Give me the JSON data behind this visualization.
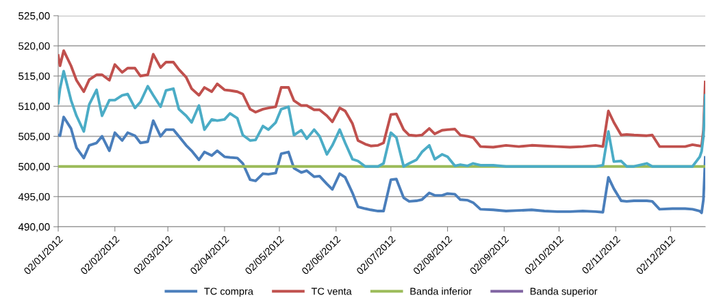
{
  "chart_data": {
    "type": "line",
    "x": [
      "2012-01-02",
      "2012-01-03",
      "2012-01-05",
      "2012-01-09",
      "2012-01-12",
      "2012-01-16",
      "2012-01-19",
      "2012-01-23",
      "2012-01-26",
      "2012-01-30",
      "2012-02-02",
      "2012-02-06",
      "2012-02-09",
      "2012-02-13",
      "2012-02-16",
      "2012-02-20",
      "2012-02-23",
      "2012-02-27",
      "2012-03-01",
      "2012-03-05",
      "2012-03-08",
      "2012-03-12",
      "2012-03-15",
      "2012-03-19",
      "2012-03-22",
      "2012-03-26",
      "2012-03-29",
      "2012-04-02",
      "2012-04-05",
      "2012-04-09",
      "2012-04-12",
      "2012-04-16",
      "2012-04-19",
      "2012-04-23",
      "2012-04-26",
      "2012-04-30",
      "2012-05-03",
      "2012-05-07",
      "2012-05-10",
      "2012-05-14",
      "2012-05-17",
      "2012-05-21",
      "2012-05-24",
      "2012-05-28",
      "2012-05-31",
      "2012-06-04",
      "2012-06-07",
      "2012-06-11",
      "2012-06-14",
      "2012-06-18",
      "2012-06-21",
      "2012-06-25",
      "2012-06-28",
      "2012-07-02",
      "2012-07-05",
      "2012-07-09",
      "2012-07-12",
      "2012-07-16",
      "2012-07-19",
      "2012-07-23",
      "2012-07-26",
      "2012-07-30",
      "2012-08-02",
      "2012-08-06",
      "2012-08-09",
      "2012-08-13",
      "2012-08-16",
      "2012-08-20",
      "2012-08-27",
      "2012-09-03",
      "2012-09-10",
      "2012-09-17",
      "2012-09-24",
      "2012-10-01",
      "2012-10-08",
      "2012-10-15",
      "2012-10-22",
      "2012-10-26",
      "2012-10-29",
      "2012-11-01",
      "2012-11-05",
      "2012-11-08",
      "2012-11-12",
      "2012-11-19",
      "2012-11-22",
      "2012-11-26",
      "2012-12-03",
      "2012-12-10",
      "2012-12-14",
      "2012-12-18",
      "2012-12-19",
      "2012-12-20",
      "2012-12-21"
    ],
    "series": [
      {
        "name": "TC compra",
        "color": "#4a7ebb",
        "values": [
          505.2,
          505.1,
          508.2,
          506.3,
          503.1,
          501.4,
          503.5,
          503.9,
          505.0,
          502.6,
          505.6,
          504.3,
          505.6,
          505.1,
          503.9,
          504.1,
          507.6,
          505.0,
          506.1,
          506.1,
          505.0,
          503.5,
          502.6,
          501.1,
          502.4,
          501.8,
          502.6,
          501.6,
          501.5,
          501.4,
          500.5,
          497.8,
          497.6,
          498.8,
          498.7,
          498.9,
          502.1,
          502.4,
          499.7,
          499.0,
          499.3,
          498.3,
          498.4,
          497.1,
          496.2,
          498.8,
          498.2,
          495.6,
          493.3,
          493.0,
          492.8,
          492.6,
          492.6,
          497.8,
          497.9,
          494.8,
          494.2,
          494.3,
          494.5,
          495.6,
          495.2,
          495.2,
          495.5,
          495.4,
          494.5,
          494.4,
          494.0,
          492.9,
          492.8,
          492.6,
          492.7,
          492.8,
          492.6,
          492.5,
          492.5,
          492.6,
          492.5,
          492.4,
          498.2,
          496.3,
          494.3,
          494.2,
          494.3,
          494.3,
          494.2,
          492.9,
          493.0,
          493.0,
          492.9,
          492.6,
          492.3,
          494.5,
          501.5
        ]
      },
      {
        "name": "TC venta",
        "color": "#c0504d",
        "values": [
          518.4,
          516.7,
          519.2,
          516.7,
          514.3,
          512.4,
          514.4,
          515.2,
          515.2,
          514.3,
          516.9,
          515.6,
          516.3,
          516.3,
          515.0,
          515.2,
          518.6,
          516.4,
          517.3,
          517.3,
          516.1,
          514.8,
          512.9,
          511.8,
          513.1,
          512.4,
          513.7,
          512.7,
          512.6,
          512.4,
          512.0,
          509.5,
          509.0,
          509.5,
          509.7,
          509.9,
          513.1,
          513.1,
          510.9,
          510.1,
          510.1,
          509.4,
          509.4,
          508.4,
          507.4,
          509.7,
          509.2,
          507.1,
          504.3,
          503.7,
          503.4,
          503.5,
          503.9,
          508.6,
          508.7,
          506.1,
          505.2,
          505.1,
          505.2,
          506.3,
          505.4,
          506.0,
          506.1,
          506.2,
          505.2,
          505.0,
          504.8,
          503.3,
          503.2,
          503.5,
          503.3,
          503.5,
          503.4,
          503.3,
          503.2,
          503.3,
          503.5,
          503.3,
          509.2,
          507.3,
          505.2,
          505.3,
          505.2,
          505.1,
          505.2,
          503.3,
          503.3,
          503.3,
          503.6,
          503.4,
          503.4,
          506.0,
          514.0
        ]
      },
      {
        "name": "Banda inferior",
        "color": "#9bbb59",
        "x": [
          "2012-01-02",
          "2012-12-21"
        ],
        "values": [
          500,
          500
        ]
      },
      {
        "name": "Banda superior",
        "color": "#8064a2",
        "values": [
          null,
          null,
          null,
          null,
          null,
          null,
          null,
          null,
          null,
          null,
          null,
          null,
          null,
          null,
          null,
          null,
          null,
          null,
          null,
          null,
          null,
          null,
          null,
          null,
          null,
          null,
          null,
          null,
          null,
          null,
          null,
          null,
          null,
          null,
          null,
          null,
          null,
          null,
          null,
          null,
          null,
          null,
          null,
          null,
          null,
          null,
          null,
          null,
          null,
          null,
          null,
          null,
          null,
          null,
          null,
          null,
          null,
          null,
          null,
          null,
          null,
          null,
          null,
          null,
          null,
          null,
          null,
          null,
          null,
          null,
          null,
          null,
          null,
          null,
          null,
          null,
          null,
          null,
          null,
          null,
          null,
          null,
          null,
          null,
          null,
          null,
          null,
          null,
          null,
          null,
          null,
          null,
          null
        ]
      },
      {
        "color": "#4bacc6",
        "values": [
          510.5,
          512.9,
          515.8,
          511.0,
          508.4,
          505.8,
          510.3,
          512.7,
          508.4,
          511.0,
          511.0,
          511.8,
          512.0,
          509.7,
          510.7,
          513.3,
          511.8,
          509.9,
          512.6,
          512.9,
          509.5,
          508.4,
          507.3,
          510.1,
          506.1,
          507.8,
          507.6,
          507.8,
          508.8,
          508.0,
          505.2,
          504.3,
          504.4,
          506.7,
          506.1,
          507.3,
          509.5,
          509.9,
          505.2,
          506.0,
          504.6,
          506.1,
          505.0,
          502.0,
          503.5,
          506.1,
          503.9,
          501.2,
          500.9,
          500.0,
          500.0,
          500.0,
          500.5,
          505.6,
          504.8,
          500.0,
          500.5,
          501.1,
          502.4,
          503.5,
          501.2,
          502.0,
          501.6,
          500.1,
          500.3,
          500.1,
          500.5,
          500.2,
          500.2,
          500.0,
          500.0,
          500.0,
          500.0,
          500.0,
          500.0,
          500.0,
          500.0,
          500.2,
          505.8,
          500.8,
          500.9,
          500.0,
          500.0,
          500.5,
          500.0,
          500.0,
          500.0,
          500.0,
          500.0,
          501.6,
          502.5,
          505.0,
          511.8
        ]
      }
    ],
    "xlim": [
      "2012-01-02",
      "2012-12-21"
    ],
    "xticks": [
      {
        "value": "2012-01-02",
        "label": "02/01/2012"
      },
      {
        "value": "2012-02-02",
        "label": "02/02/2012"
      },
      {
        "value": "2012-03-02",
        "label": "02/03/2012"
      },
      {
        "value": "2012-04-02",
        "label": "02/04/2012"
      },
      {
        "value": "2012-05-02",
        "label": "02/05/2012"
      },
      {
        "value": "2012-06-02",
        "label": "02/06/2012"
      },
      {
        "value": "2012-07-02",
        "label": "02/07/2012"
      },
      {
        "value": "2012-08-02",
        "label": "02/08/2012"
      },
      {
        "value": "2012-09-02",
        "label": "02/09/2012"
      },
      {
        "value": "2012-10-02",
        "label": "02/10/2012"
      },
      {
        "value": "2012-11-02",
        "label": "02/11/2012"
      },
      {
        "value": "2012-12-02",
        "label": "02/12/2012"
      }
    ],
    "ylim": [
      490,
      525
    ],
    "yticks": [
      {
        "value": 490,
        "label": "490,00"
      },
      {
        "value": 495,
        "label": "495,00"
      },
      {
        "value": 500,
        "label": "500,00"
      },
      {
        "value": 505,
        "label": "505,00"
      },
      {
        "value": 510,
        "label": "510,00"
      },
      {
        "value": 515,
        "label": "515,00"
      },
      {
        "value": 520,
        "label": "520,00"
      },
      {
        "value": 525,
        "label": "525,00"
      }
    ],
    "grid": "y",
    "legend": "bottom",
    "marker": "none",
    "line_style": "solid"
  }
}
